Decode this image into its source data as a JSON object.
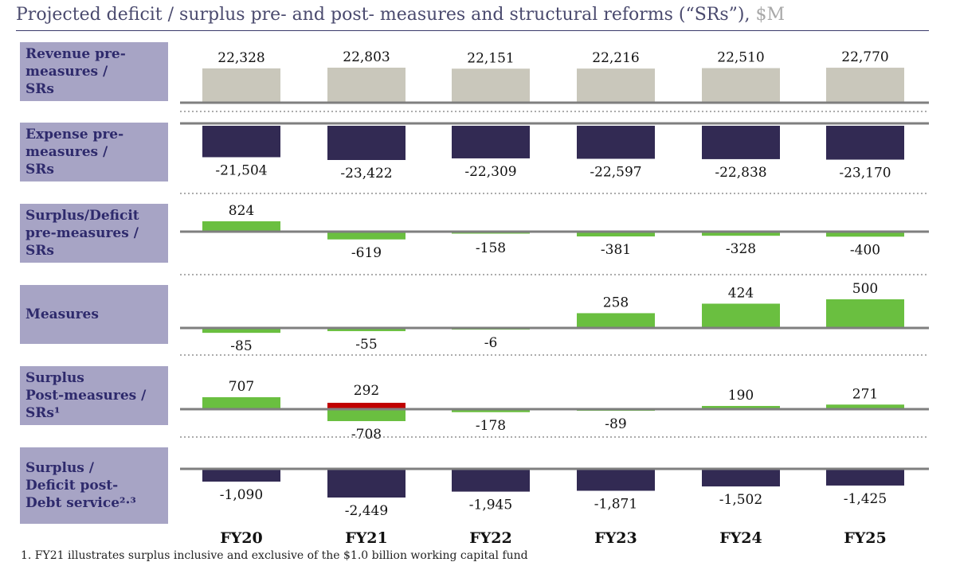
{
  "title": {
    "main": "Projected deficit / surplus pre- and post- measures and structural reforms (“SRs”),",
    "unit": "$M"
  },
  "chart_data": {
    "type": "bar",
    "categories": [
      "FY20",
      "FY21",
      "FY22",
      "FY23",
      "FY24",
      "FY25"
    ],
    "panels": [
      {
        "label": "Revenue pre-measures / SRs",
        "label_lines": [
          "Revenue pre-",
          "measures /",
          "SRs"
        ],
        "values": [
          22328,
          22803,
          22151,
          22216,
          22510,
          22770
        ],
        "labels": [
          "22,328",
          "22,803",
          "22,151",
          "22,216",
          "22,510",
          "22,770"
        ]
      },
      {
        "label": "Expense pre-measures / SRs",
        "label_lines": [
          "Expense pre-",
          "measures /",
          "SRs"
        ],
        "values": [
          -21504,
          -23422,
          -22309,
          -22597,
          -22838,
          -23170
        ],
        "labels": [
          "-21,504",
          "-23,422",
          "-22,309",
          "-22,597",
          "-22,838",
          "-23,170"
        ]
      },
      {
        "label": "Surplus/Deficit pre-measures / SRs",
        "label_lines": [
          "Surplus/Deficit",
          "pre-measures /",
          "SRs"
        ],
        "values": [
          824,
          -619,
          -158,
          -381,
          -328,
          -400
        ],
        "labels": [
          "824",
          "-619",
          "-158",
          "-381",
          "-328",
          "-400"
        ]
      },
      {
        "label": "Measures",
        "label_lines": [
          "Measures"
        ],
        "values": [
          -85,
          -55,
          -6,
          258,
          424,
          500
        ],
        "labels": [
          "-85",
          "-55",
          "-6",
          "258",
          "424",
          "500"
        ]
      },
      {
        "label": "Surplus Post-measures / SRs¹",
        "label_lines": [
          "Surplus",
          "Post-measures /",
          "SRs¹"
        ],
        "values": [
          707,
          -708,
          -178,
          -89,
          190,
          271
        ],
        "labels": [
          "707",
          "-708",
          "-178",
          "-89",
          "190",
          "271"
        ],
        "extra": {
          "category": "FY21",
          "value": 292,
          "label": "292",
          "color": "#c00000"
        }
      },
      {
        "label": "Surplus / Deficit post-Debt service²·³",
        "label_lines": [
          "Surplus /",
          "Deficit post-",
          "Debt service²·³"
        ],
        "values": [
          -1090,
          -2449,
          -1945,
          -1871,
          -1502,
          -1425
        ],
        "labels": [
          "-1,090",
          "-2,449",
          "-1,945",
          "-1,871",
          "-1,502",
          "-1,425"
        ]
      }
    ],
    "colors": {
      "revenue": "#c9c7bb",
      "expense": "#322a53",
      "positive": "#6abf40",
      "negative": "#6abf40",
      "highlight": "#c00000",
      "label_bg": "#a7a4c5",
      "label_text": "#2e2a6c",
      "axis": "#7f7f7f"
    }
  },
  "footnote": "1. FY21 illustrates surplus inclusive and exclusive of the $1.0 billion working capital fund"
}
